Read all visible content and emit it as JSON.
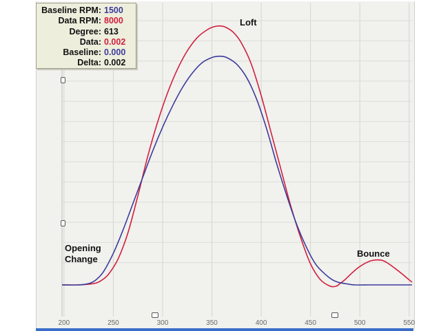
{
  "readout": {
    "rows": [
      {
        "label": "Baseline RPM:",
        "value": "1500",
        "color": "#3b3b9a"
      },
      {
        "label": "Data RPM:",
        "value": "8000",
        "color": "#d21e3c"
      },
      {
        "label": "Degree:",
        "value": "613",
        "color": "#111111"
      },
      {
        "label": "Data:",
        "value": "0.002",
        "color": "#d21e3c"
      },
      {
        "label": "Baseline:",
        "value": "0.000",
        "color": "#3b3b9a"
      },
      {
        "label": "Delta:",
        "value": "0.002",
        "color": "#111111"
      }
    ]
  },
  "annotations": {
    "loft": "Loft",
    "opening_change": [
      "Opening",
      "Change"
    ],
    "bounce": "Bounce"
  },
  "chart_data": {
    "type": "line",
    "xlabel": "",
    "ylabel": "",
    "xlim": [
      198,
      553
    ],
    "ylim": [
      0,
      100
    ],
    "xticks": [
      200,
      250,
      300,
      350,
      400,
      450,
      500,
      550
    ],
    "grid": true,
    "series": [
      {
        "color": "#d21e3c",
        "x": [
          198,
          215,
          230,
          237,
          245,
          255,
          265,
          275,
          285,
          295,
          305,
          315,
          325,
          335,
          345,
          352,
          358,
          364,
          372,
          380,
          390,
          400,
          410,
          420,
          430,
          440,
          450,
          460,
          470,
          476,
          480,
          485,
          492,
          500,
          510,
          518,
          525,
          535,
          545,
          553
        ],
        "y": [
          0,
          0,
          0.5,
          1.5,
          4,
          10,
          20,
          34,
          49,
          62,
          73,
          82,
          89,
          94,
          97,
          98.2,
          98.5,
          98,
          96,
          92,
          84,
          72,
          58,
          44,
          30,
          18,
          8,
          2,
          -0.5,
          -0.5,
          0.5,
          2,
          4.5,
          7,
          9,
          9.5,
          9,
          6.5,
          3.5,
          1
        ]
      },
      {
        "color": "#3b3b9a",
        "x": [
          198,
          215,
          225,
          232,
          240,
          250,
          260,
          270,
          280,
          290,
          300,
          310,
          320,
          330,
          340,
          350,
          358,
          365,
          375,
          385,
          395,
          405,
          415,
          425,
          435,
          445,
          455,
          465,
          472,
          478,
          485,
          495,
          510,
          530,
          553
        ],
        "y": [
          0,
          0,
          0.5,
          1.8,
          5,
          12,
          21,
          31,
          41,
          51,
          60,
          68,
          75,
          80.5,
          84.5,
          86.5,
          87,
          86.5,
          84,
          79,
          71,
          60,
          47,
          35,
          24,
          15,
          8,
          4,
          2,
          1,
          0.5,
          0,
          0,
          0,
          0
        ]
      }
    ]
  }
}
